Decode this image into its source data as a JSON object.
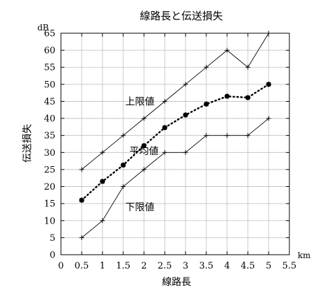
{
  "chart_data": {
    "type": "line",
    "title": "線路長と伝送損失",
    "xlabel": "線路長",
    "ylabel": "伝送損失",
    "x_unit": "km",
    "y_unit": "dB",
    "xlim": [
      0,
      5.5
    ],
    "ylim": [
      0,
      65
    ],
    "xticks": [
      0,
      0.5,
      1,
      1.5,
      2,
      2.5,
      3,
      3.5,
      4,
      4.5,
      5,
      5.5
    ],
    "yticks": [
      0,
      5,
      10,
      15,
      20,
      25,
      30,
      35,
      40,
      45,
      50,
      55,
      60,
      65
    ],
    "grid": true,
    "legend": "none",
    "x": [
      0.5,
      1,
      1.5,
      2,
      2.5,
      3,
      3.5,
      4,
      4.5,
      5
    ],
    "series": [
      {
        "name": "上限値",
        "style": "solid thin line, plus markers",
        "values": [
          25,
          30,
          35,
          40,
          45,
          50,
          55,
          60,
          55,
          65
        ]
      },
      {
        "name": "平均値",
        "style": "dotted thick line, star markers",
        "values": [
          16,
          21.5,
          26.3,
          32,
          37.3,
          41,
          44.2,
          46.5,
          46.1,
          50
        ]
      },
      {
        "name": "下限値",
        "style": "solid thin line, plus markers",
        "values": [
          5,
          10,
          20,
          25,
          30,
          30,
          35,
          35,
          35,
          40
        ]
      }
    ],
    "annotations": [
      {
        "text": "上限値",
        "x": 1.9,
        "y": 45
      },
      {
        "text": "平均値",
        "x": 2.0,
        "y": 30.5
      },
      {
        "text": "下限値",
        "x": 1.9,
        "y": 14
      }
    ]
  }
}
